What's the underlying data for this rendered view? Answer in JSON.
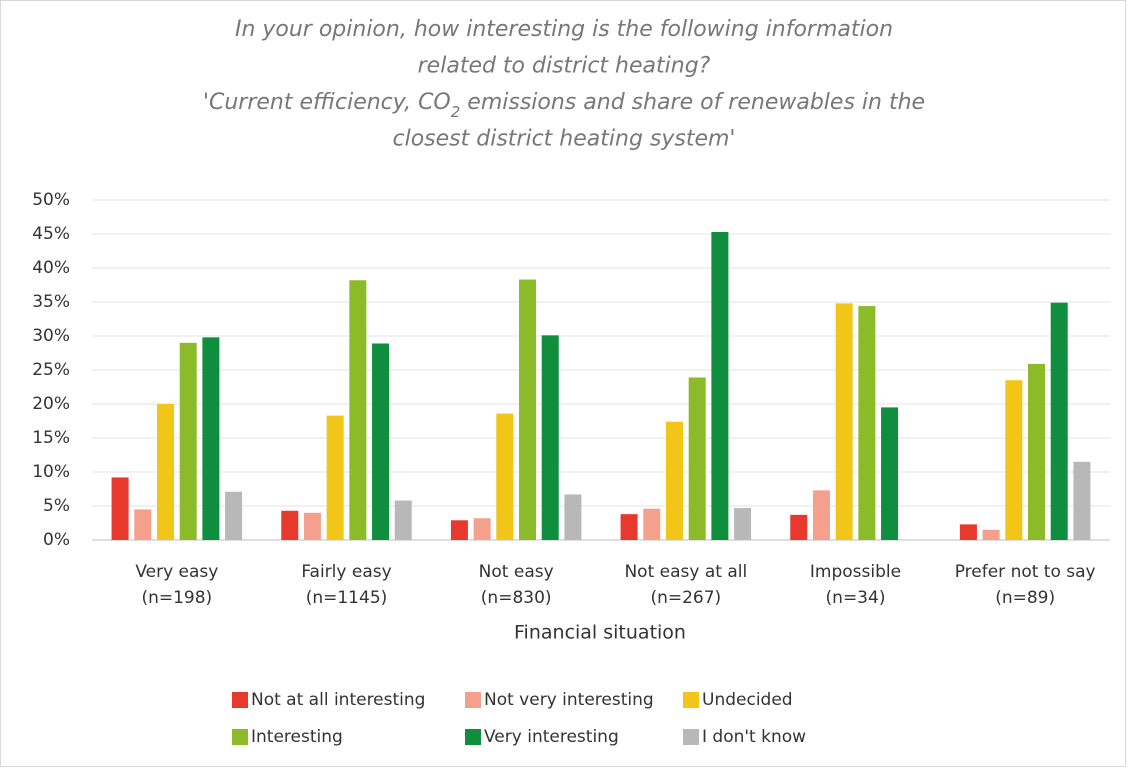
{
  "chart_data": {
    "type": "bar",
    "title": [
      "In your opinion, how interesting is the following information",
      "related to district heating?",
      [
        "'Current efficiency, CO",
        "2",
        " emissions and share of renewables in the"
      ],
      "closest district heating system'"
    ],
    "x_label": "Financial situation",
    "categories": [
      [
        "Very easy",
        "(n=198)"
      ],
      [
        "Fairly easy",
        "(n=1145)"
      ],
      [
        "Not easy",
        "(n=830)"
      ],
      [
        "Not easy at all",
        "(n=267)"
      ],
      [
        "Impossible",
        "(n=34)"
      ],
      [
        "Prefer not to say",
        "(n=89)"
      ]
    ],
    "series": [
      {
        "name": "Not at all interesting",
        "color": "#e8392f",
        "values": [
          9.2,
          4.3,
          2.9,
          3.8,
          3.7,
          2.3
        ]
      },
      {
        "name": "Not very interesting",
        "color": "#f4a08c",
        "values": [
          4.5,
          4.0,
          3.2,
          4.6,
          7.3,
          1.5
        ]
      },
      {
        "name": "Undecided",
        "color": "#f2c618",
        "values": [
          20.0,
          18.3,
          18.6,
          17.4,
          34.8,
          23.5
        ]
      },
      {
        "name": "Interesting",
        "color": "#8cbb2a",
        "values": [
          29.0,
          38.2,
          38.3,
          23.9,
          34.4,
          25.9
        ]
      },
      {
        "name": "Very interesting",
        "color": "#0f8f3e",
        "values": [
          29.8,
          28.9,
          30.1,
          45.3,
          19.5,
          34.9
        ]
      },
      {
        "name": "I don't know",
        "color": "#b8b8b8",
        "values": [
          7.1,
          5.8,
          6.7,
          4.7,
          0,
          11.5
        ]
      }
    ],
    "ylim": [
      0,
      50
    ],
    "yticks": [
      {
        "value": 0,
        "label": "0%"
      },
      {
        "value": 5,
        "label": "5%"
      },
      {
        "value": 10,
        "label": "10%"
      },
      {
        "value": 15,
        "label": "15%"
      },
      {
        "value": 20,
        "label": "20%"
      },
      {
        "value": 25,
        "label": "25%"
      },
      {
        "value": 30,
        "label": "30%"
      },
      {
        "value": 35,
        "label": "35%"
      },
      {
        "value": 40,
        "label": "40%"
      },
      {
        "value": 45,
        "label": "45%"
      },
      {
        "value": 50,
        "label": "50%"
      }
    ],
    "grid": true
  }
}
